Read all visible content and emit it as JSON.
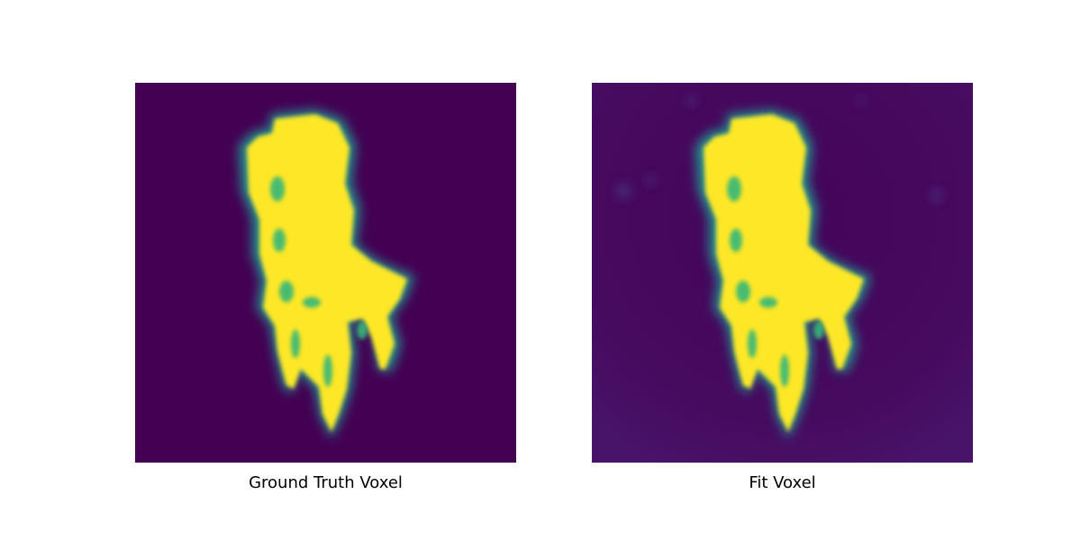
{
  "figure": {
    "left_caption": "Ground Truth Voxel",
    "right_caption": "Fit Voxel"
  },
  "colors": {
    "background_low": "#440154",
    "fit_background": "#46085c",
    "fit_noise": "#482878",
    "edge_mid": "#21918c",
    "edge_teal": "#35b779",
    "fill_high": "#fde725",
    "shadow": "#3b528b"
  }
}
